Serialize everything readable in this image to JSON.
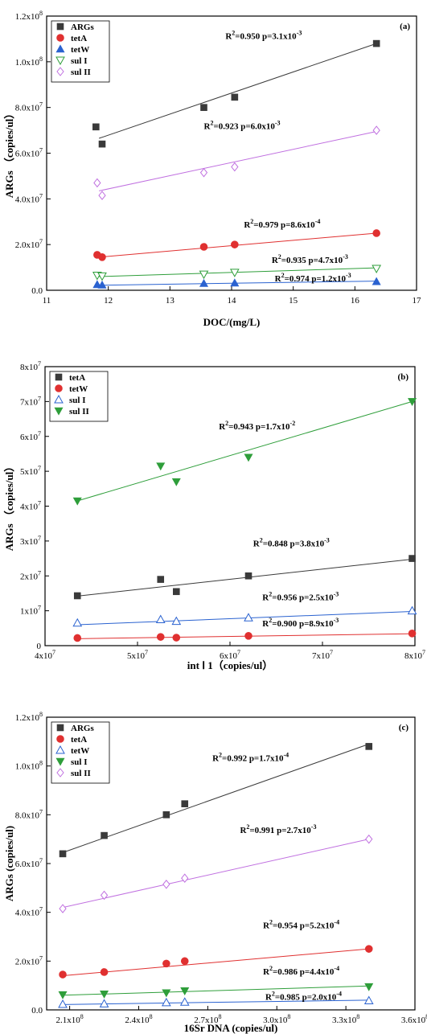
{
  "colors": {
    "black": "#3a3a3a",
    "red": "#e03030",
    "blue": "#2a62d0",
    "green": "#2e9e3a",
    "violet": "#c070e0"
  },
  "chart_data": [
    {
      "type": "scatter",
      "panel_label": "(a)",
      "xlabel": "DOC/(mg/L)",
      "ylabel": "ARGs （copies/ul）",
      "xlim": [
        11,
        17
      ],
      "ylim": [
        0,
        120000000
      ],
      "x_ticks": [
        {
          "v": 11,
          "label": "11"
        },
        {
          "v": 12,
          "label": "12"
        },
        {
          "v": 13,
          "label": "13"
        },
        {
          "v": 14,
          "label": "14"
        },
        {
          "v": 15,
          "label": "15"
        },
        {
          "v": 16,
          "label": "16"
        },
        {
          "v": 17,
          "label": "17"
        }
      ],
      "y_ticks": [
        {
          "v": 0,
          "label": "0.0"
        },
        {
          "v": 20000000,
          "label": "2.0x10",
          "exp": "7"
        },
        {
          "v": 40000000,
          "label": "4.0x10",
          "exp": "7"
        },
        {
          "v": 60000000,
          "label": "6.0x10",
          "exp": "7"
        },
        {
          "v": 80000000,
          "label": "8.0x10",
          "exp": "7"
        },
        {
          "v": 100000000,
          "label": "1.0x10",
          "exp": "8"
        },
        {
          "v": 120000000,
          "label": "1.2x10",
          "exp": "8"
        }
      ],
      "legend_position": "top-left",
      "series": [
        {
          "name": "ARGs",
          "marker": "square",
          "color": "#3a3a3a",
          "points": [
            [
              11.8,
              71500000
            ],
            [
              11.9,
              64000000
            ],
            [
              13.55,
              80000000
            ],
            [
              14.05,
              84500000
            ],
            [
              16.35,
              108000000
            ]
          ],
          "fit": [
            [
              11.85,
              66500000
            ],
            [
              16.35,
              108000000
            ]
          ],
          "annotation": {
            "r2": "0.950",
            "p": "3.1x10",
            "p_exp": "-3",
            "at": [
              13.9,
              110000000
            ]
          }
        },
        {
          "name": "tetA",
          "marker": "circle",
          "color": "#e03030",
          "points": [
            [
              11.82,
              15500000
            ],
            [
              11.9,
              14500000
            ],
            [
              13.55,
              19000000
            ],
            [
              14.05,
              20000000
            ],
            [
              16.35,
              25000000
            ]
          ],
          "fit": [
            [
              11.85,
              14500000
            ],
            [
              16.35,
              25000000
            ]
          ],
          "annotation": {
            "r2": "0.979",
            "p": "8.6x10",
            "p_exp": "-4",
            "at": [
              14.2,
              27500000
            ]
          }
        },
        {
          "name": "tetW",
          "marker": "triangle-up",
          "color": "#2a62d0",
          "points": [
            [
              11.82,
              2500000
            ],
            [
              11.9,
              2300000
            ],
            [
              13.55,
              3000000
            ],
            [
              14.05,
              3200000
            ],
            [
              16.35,
              3800000
            ]
          ],
          "fit": [
            [
              11.85,
              2200000
            ],
            [
              16.35,
              4000000
            ]
          ],
          "annotation": {
            "r2": "0.974",
            "p": "1.2x10",
            "p_exp": "-3",
            "at": [
              14.7,
              3900000
            ]
          }
        },
        {
          "name": "sul I",
          "marker": "triangle-down-open",
          "color": "#2e9e3a",
          "points": [
            [
              11.82,
              6500000
            ],
            [
              11.9,
              6200000
            ],
            [
              13.55,
              7000000
            ],
            [
              14.05,
              7800000
            ],
            [
              16.35,
              9500000
            ]
          ],
          "fit": [
            [
              11.85,
              6000000
            ],
            [
              16.35,
              9800000
            ]
          ],
          "annotation": {
            "r2": "0.935",
            "p": "4.7x10",
            "p_exp": "-3",
            "at": [
              14.65,
              12000000
            ]
          }
        },
        {
          "name": "sul II",
          "marker": "diamond-open",
          "color": "#c070e0",
          "points": [
            [
              11.82,
              47000000
            ],
            [
              11.9,
              41500000
            ],
            [
              13.55,
              51500000
            ],
            [
              14.05,
              54000000
            ],
            [
              16.35,
              70000000
            ]
          ],
          "fit": [
            [
              11.85,
              43500000
            ],
            [
              16.35,
              69500000
            ]
          ],
          "annotation": {
            "r2": "0.923",
            "p": "6.0x10",
            "p_exp": "-3",
            "at": [
              13.55,
              70500000
            ]
          }
        }
      ]
    },
    {
      "type": "scatter",
      "panel_label": "(b)",
      "xlabel": "int Ⅰ 1（copies/ul）",
      "ylabel": "ARGs （copies/ul）",
      "xlim": [
        40000000,
        80000000
      ],
      "ylim": [
        0,
        80000000
      ],
      "x_ticks": [
        {
          "v": 40000000,
          "label": "4x10",
          "exp": "7"
        },
        {
          "v": 50000000,
          "label": "5x10",
          "exp": "7"
        },
        {
          "v": 60000000,
          "label": "6x10",
          "exp": "7"
        },
        {
          "v": 70000000,
          "label": "7x10",
          "exp": "7"
        },
        {
          "v": 80000000,
          "label": "8x10",
          "exp": "7"
        }
      ],
      "y_ticks": [
        {
          "v": 0,
          "label": "0"
        },
        {
          "v": 10000000,
          "label": "1x10",
          "exp": "7"
        },
        {
          "v": 20000000,
          "label": "2x10",
          "exp": "7"
        },
        {
          "v": 30000000,
          "label": "3x10",
          "exp": "7"
        },
        {
          "v": 40000000,
          "label": "4x10",
          "exp": "7"
        },
        {
          "v": 50000000,
          "label": "5x10",
          "exp": "7"
        },
        {
          "v": 60000000,
          "label": "6x10",
          "exp": "7"
        },
        {
          "v": 70000000,
          "label": "7x10",
          "exp": "7"
        },
        {
          "v": 80000000,
          "label": "8x10",
          "exp": "7"
        }
      ],
      "legend_position": "top-left",
      "series": [
        {
          "name": "tetA",
          "marker": "square",
          "color": "#3a3a3a",
          "points": [
            [
              43500000,
              14300000
            ],
            [
              52500000,
              19000000
            ],
            [
              54200000,
              15500000
            ],
            [
              62000000,
              20000000
            ],
            [
              79700000,
              25000000
            ]
          ],
          "fit": [
            [
              43500000,
              14200000
            ],
            [
              79700000,
              24800000
            ]
          ],
          "annotation": {
            "r2": "0.848",
            "p": "3.8x10",
            "p_exp": "-3",
            "at": [
              62500000,
              28500000
            ]
          }
        },
        {
          "name": "tetW",
          "marker": "circle",
          "color": "#e03030",
          "points": [
            [
              43500000,
              2200000
            ],
            [
              52500000,
              2500000
            ],
            [
              54200000,
              2300000
            ],
            [
              62000000,
              2800000
            ],
            [
              79700000,
              3500000
            ]
          ],
          "fit": [
            [
              43500000,
              2000000
            ],
            [
              79700000,
              3400000
            ]
          ],
          "annotation": {
            "r2": "0.900",
            "p": "8.9x10",
            "p_exp": "-3",
            "at": [
              63500000,
              5500000
            ]
          }
        },
        {
          "name": "sul I",
          "marker": "triangle-up-open",
          "color": "#2a62d0",
          "points": [
            [
              43500000,
              6500000
            ],
            [
              52500000,
              7500000
            ],
            [
              54200000,
              7000000
            ],
            [
              62000000,
              8000000
            ],
            [
              79700000,
              10000000
            ]
          ],
          "fit": [
            [
              43500000,
              6000000
            ],
            [
              79700000,
              9800000
            ]
          ],
          "annotation": {
            "r2": "0.956",
            "p": "2.5x10",
            "p_exp": "-3",
            "at": [
              63500000,
              13000000
            ]
          }
        },
        {
          "name": "sul II",
          "marker": "triangle-down",
          "color": "#2e9e3a",
          "points": [
            [
              43500000,
              41500000
            ],
            [
              52500000,
              51500000
            ],
            [
              54200000,
              47000000
            ],
            [
              62000000,
              54000000
            ],
            [
              79700000,
              70000000
            ]
          ],
          "fit": [
            [
              43500000,
              41500000
            ],
            [
              79700000,
              70000000
            ]
          ],
          "annotation": {
            "r2": "0.943",
            "p": "1.7x10",
            "p_exp": "-2",
            "at": [
              58800000,
              62000000
            ]
          }
        }
      ]
    },
    {
      "type": "scatter",
      "panel_label": "(c)",
      "xlabel": "16Sr DNA (copies/ul)",
      "ylabel": "ARGs (copies/ul)",
      "xlim": [
        200000000,
        360000000
      ],
      "ylim": [
        0,
        120000000
      ],
      "x_ticks": [
        {
          "v": 210000000,
          "label": "2.1x10",
          "exp": "8"
        },
        {
          "v": 240000000,
          "label": "2.4x10",
          "exp": "8"
        },
        {
          "v": 270000000,
          "label": "2.7x10",
          "exp": "8"
        },
        {
          "v": 300000000,
          "label": "3.0x10",
          "exp": "8"
        },
        {
          "v": 330000000,
          "label": "3.3x10",
          "exp": "8"
        },
        {
          "v": 360000000,
          "label": "3.6x10",
          "exp": "8"
        }
      ],
      "y_ticks": [
        {
          "v": 0,
          "label": "0.0"
        },
        {
          "v": 20000000,
          "label": "2.0x10",
          "exp": "7"
        },
        {
          "v": 40000000,
          "label": "4.0x10",
          "exp": "7"
        },
        {
          "v": 60000000,
          "label": "6.0x10",
          "exp": "7"
        },
        {
          "v": 80000000,
          "label": "8.0x10",
          "exp": "7"
        },
        {
          "v": 100000000,
          "label": "1.0x10",
          "exp": "8"
        },
        {
          "v": 120000000,
          "label": "1.2x10",
          "exp": "8"
        }
      ],
      "legend_position": "top-left",
      "series": [
        {
          "name": "ARGs",
          "marker": "square",
          "color": "#3a3a3a",
          "points": [
            [
              207000000,
              64000000
            ],
            [
              225000000,
              71500000
            ],
            [
              252000000,
              80000000
            ],
            [
              260000000,
              84500000
            ],
            [
              340000000,
              108000000
            ]
          ],
          "fit": [
            [
              207000000,
              64500000
            ],
            [
              340000000,
              109000000
            ]
          ],
          "annotation": {
            "r2": "0.992",
            "p": "1.7x10",
            "p_exp": "-4",
            "at": [
              272000000,
              102000000
            ]
          }
        },
        {
          "name": "tetA",
          "marker": "circle",
          "color": "#e03030",
          "points": [
            [
              207000000,
              14500000
            ],
            [
              225000000,
              15500000
            ],
            [
              252000000,
              19000000
            ],
            [
              260000000,
              20000000
            ],
            [
              340000000,
              25000000
            ]
          ],
          "fit": [
            [
              207000000,
              14000000
            ],
            [
              340000000,
              25000000
            ]
          ],
          "annotation": {
            "r2": "0.954",
            "p": "5.2x10",
            "p_exp": "-4",
            "at": [
              294000000,
              33500000
            ]
          }
        },
        {
          "name": "tetW",
          "marker": "triangle-up-open",
          "color": "#2a62d0",
          "points": [
            [
              207000000,
              2300000
            ],
            [
              225000000,
              2500000
            ],
            [
              252000000,
              3000000
            ],
            [
              260000000,
              3200000
            ],
            [
              340000000,
              3800000
            ]
          ],
          "fit": [
            [
              207000000,
              2200000
            ],
            [
              340000000,
              4000000
            ]
          ],
          "annotation": {
            "r2": "0.985",
            "p": "2.0x10",
            "p_exp": "-4",
            "at": [
              295000000,
              4200000
            ]
          }
        },
        {
          "name": "sul I",
          "marker": "triangle-down",
          "color": "#2e9e3a",
          "points": [
            [
              207000000,
              6200000
            ],
            [
              225000000,
              6500000
            ],
            [
              252000000,
              7000000
            ],
            [
              260000000,
              7800000
            ],
            [
              340000000,
              9500000
            ]
          ],
          "fit": [
            [
              207000000,
              6000000
            ],
            [
              340000000,
              9800000
            ]
          ],
          "annotation": {
            "r2": "0.986",
            "p": "4.4x10",
            "p_exp": "-4",
            "at": [
              294000000,
              14500000
            ]
          }
        },
        {
          "name": "sul II",
          "marker": "diamond-open",
          "color": "#c070e0",
          "points": [
            [
              207000000,
              41500000
            ],
            [
              225000000,
              47000000
            ],
            [
              252000000,
              51500000
            ],
            [
              260000000,
              54000000
            ],
            [
              340000000,
              70000000
            ]
          ],
          "fit": [
            [
              207000000,
              42000000
            ],
            [
              340000000,
              70000000
            ]
          ],
          "annotation": {
            "r2": "0.991",
            "p": "2.7x10",
            "p_exp": "-3",
            "at": [
              284000000,
              72500000
            ]
          }
        }
      ]
    }
  ]
}
